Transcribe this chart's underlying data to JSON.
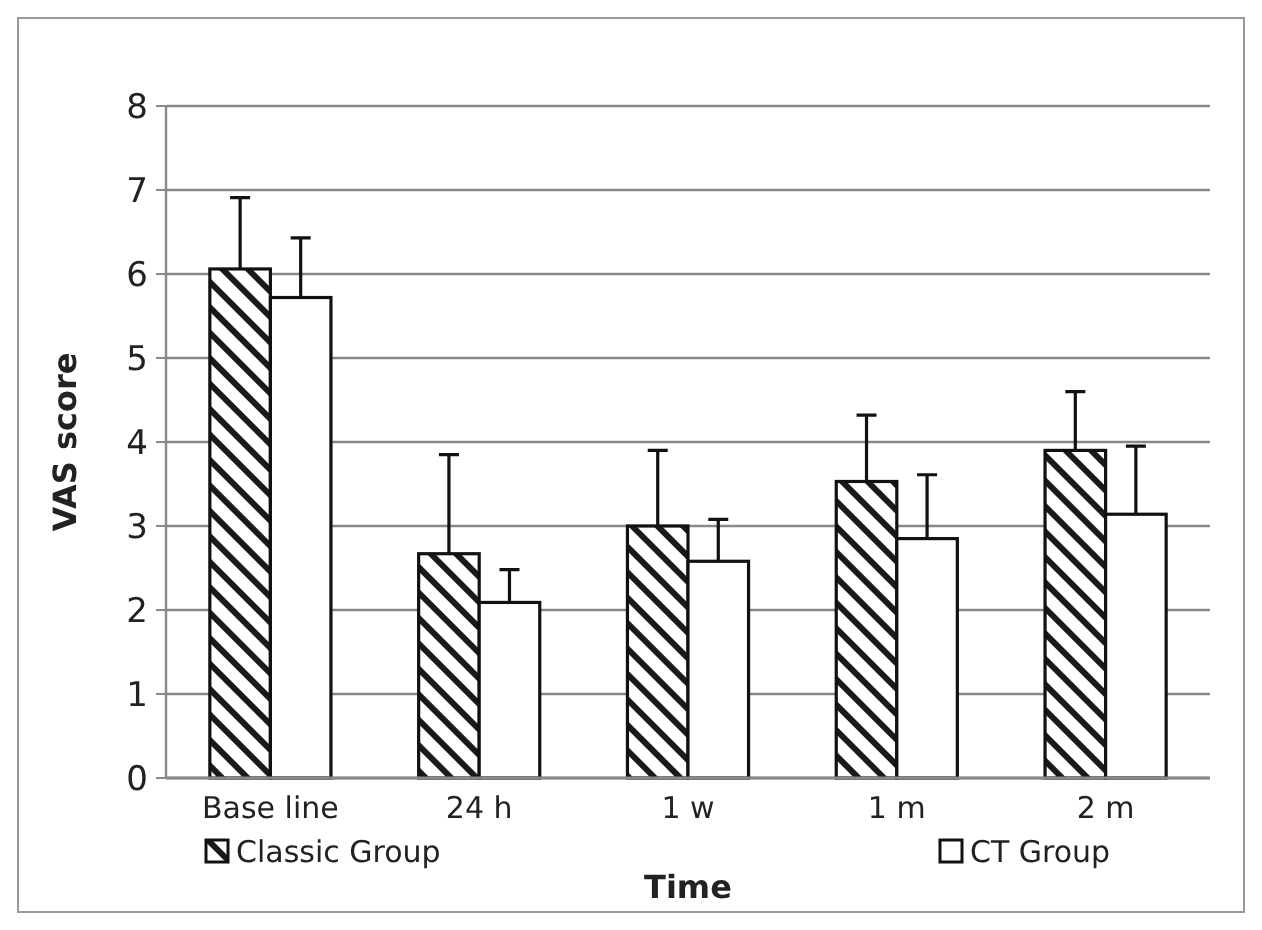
{
  "chart_data": {
    "type": "bar",
    "xlabel": "Time",
    "ylabel": "VAS score",
    "categories": [
      "Base line",
      "24 h",
      "1 w",
      "1 m",
      "2 m"
    ],
    "series": [
      {
        "name": "Classic Group",
        "color": "#1a1a1a",
        "values": [
          6.06,
          2.67,
          3.0,
          3.53,
          3.9
        ],
        "errors": [
          [
            6.06,
            6.91
          ],
          [
            2.67,
            3.85
          ],
          [
            3.0,
            3.9
          ],
          [
            3.53,
            4.32
          ],
          [
            3.9,
            4.6
          ]
        ]
      },
      {
        "name": "CT Group",
        "color": "#ffffff",
        "values": [
          5.72,
          2.09,
          2.58,
          2.85,
          3.14
        ],
        "errors": [
          [
            5.72,
            6.43
          ],
          [
            2.09,
            2.48
          ],
          [
            2.58,
            3.08
          ],
          [
            2.85,
            3.61
          ],
          [
            3.14,
            3.95
          ]
        ]
      }
    ],
    "ylim": [
      0,
      8
    ],
    "yticks": [
      0,
      1,
      2,
      3,
      4,
      5,
      6,
      7,
      8
    ],
    "grid": "y",
    "legend": "bottom"
  }
}
